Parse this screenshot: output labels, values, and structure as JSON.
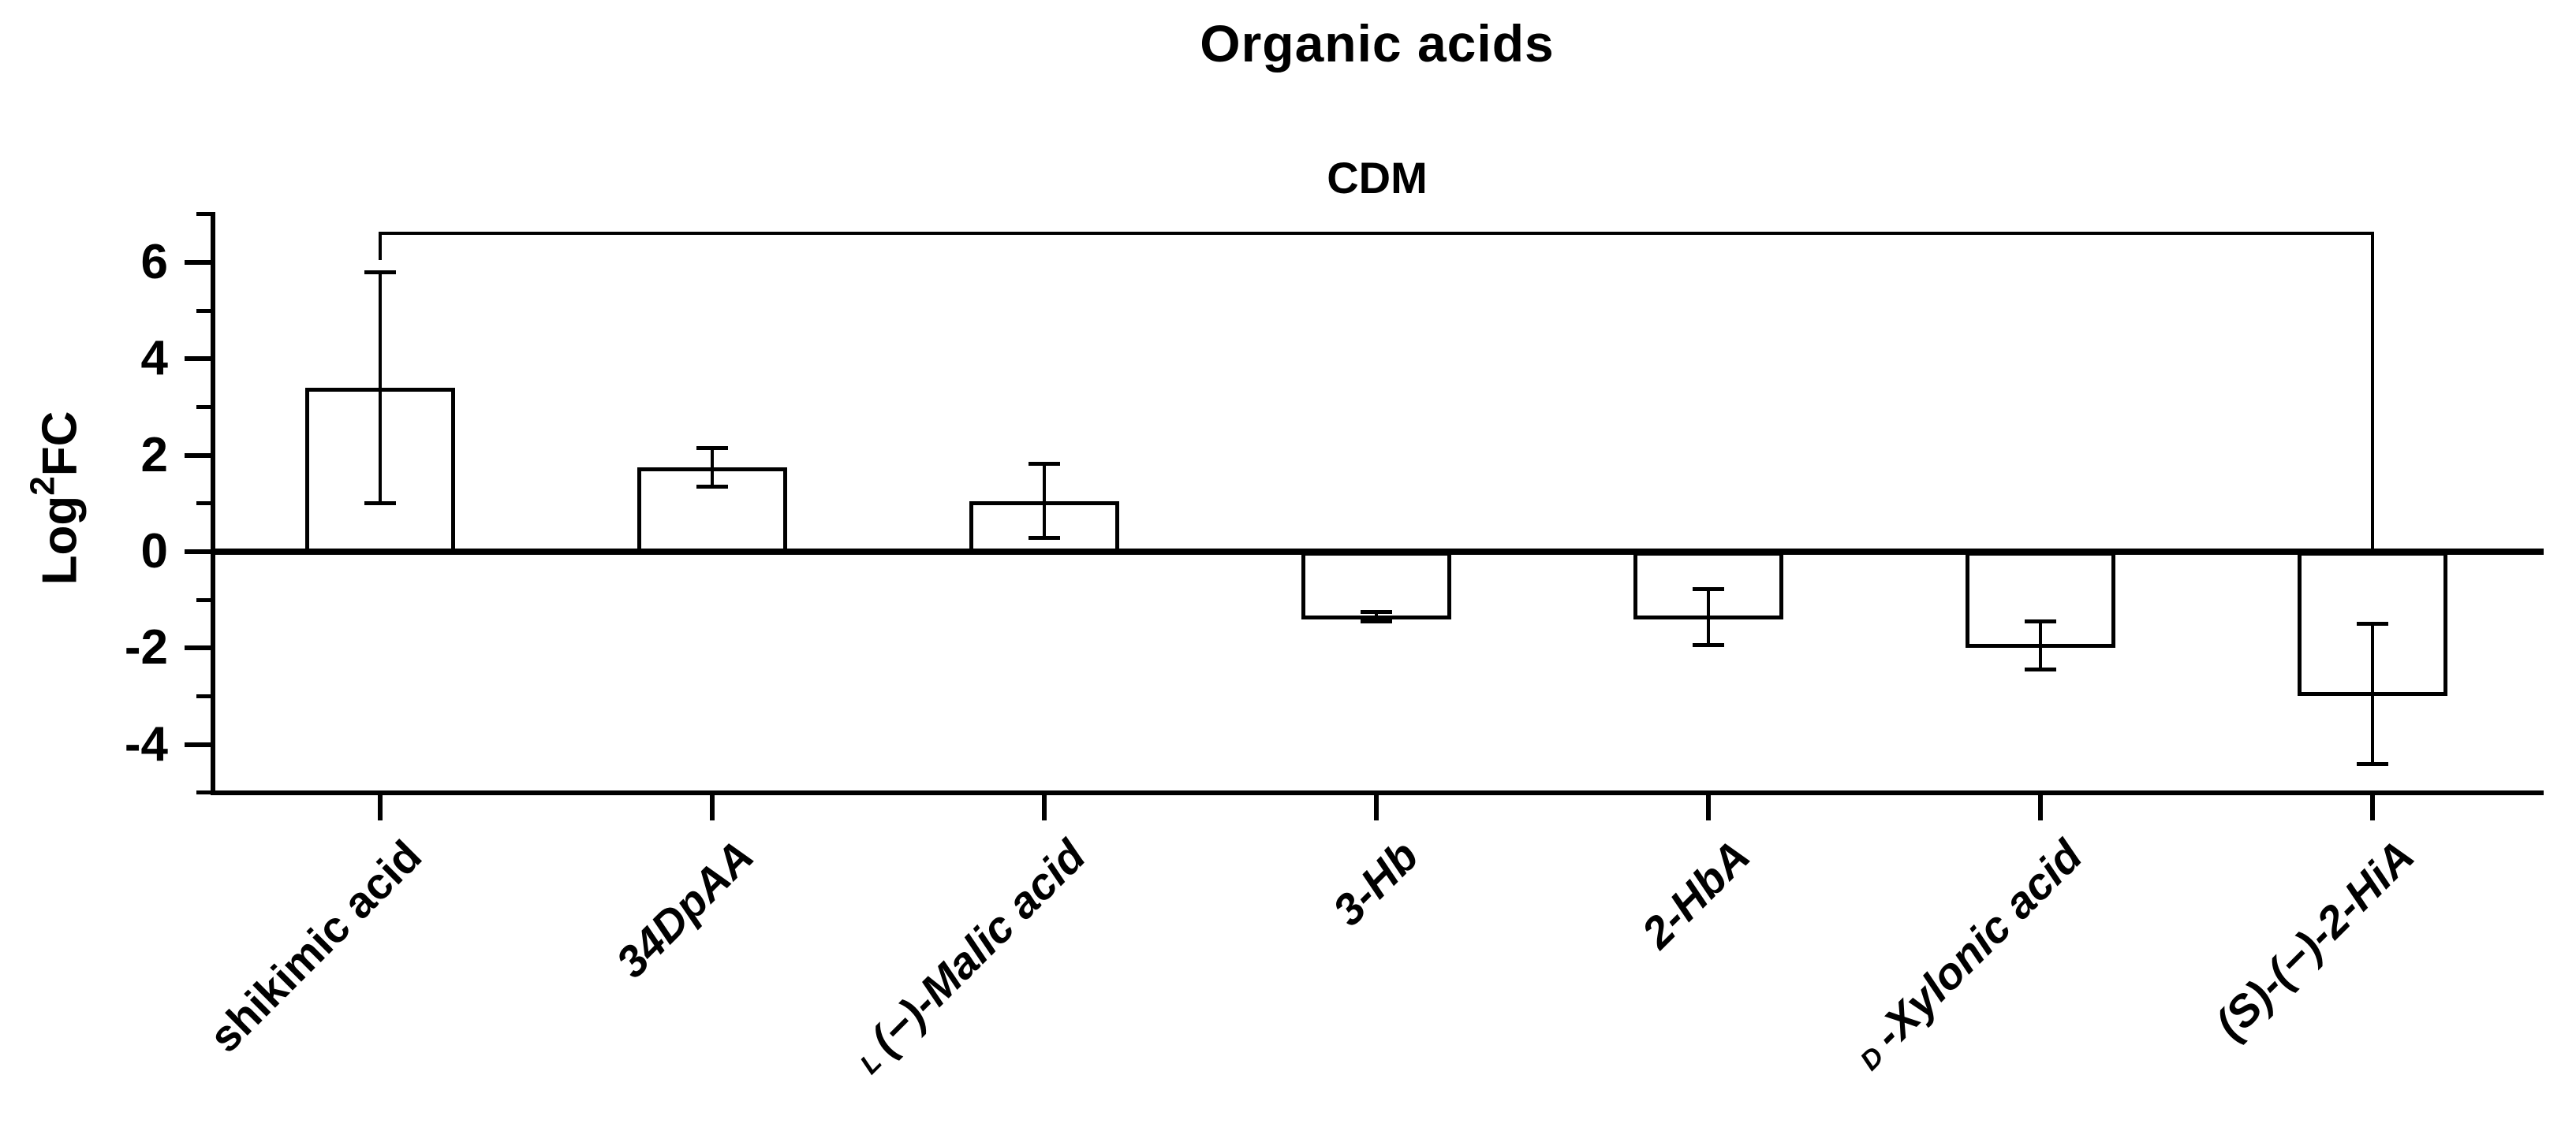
{
  "title": "Organic acids",
  "subtitle_bracket_label": "CDM",
  "y_axis": {
    "label_base": "Log",
    "label_sup": "2",
    "label_rest": "FC"
  },
  "chart_data": {
    "type": "bar",
    "title": "Organic acids",
    "ylabel": "Log2FC",
    "xlabel": "",
    "ylim": [
      -5,
      7
    ],
    "ytick_major": [
      6,
      4,
      2,
      0,
      -2,
      -4
    ],
    "ytick_minor": [
      7,
      5,
      3,
      1,
      -1,
      -3,
      -5
    ],
    "grid": false,
    "legend": false,
    "bar_fill": "#ffffff",
    "line_color": "#000000",
    "categories": [
      {
        "prefix": "",
        "label": "shikimic acid",
        "italic": false
      },
      {
        "prefix": "",
        "label": "34DpAA",
        "italic": true
      },
      {
        "prefix": "L",
        "label": "(−)-Malic acid",
        "italic": true
      },
      {
        "prefix": "",
        "label": "3-Hb",
        "italic": true
      },
      {
        "prefix": "",
        "label": "2-HbA",
        "italic": true
      },
      {
        "prefix": "D",
        "label": "-Xylonic acid",
        "italic": true
      },
      {
        "prefix": "",
        "label": "(S)-(−)-2-HiA",
        "italic": true
      }
    ],
    "series": [
      {
        "name": "CDM",
        "values": [
          3.4,
          1.75,
          1.05,
          -1.35,
          -1.35,
          -1.95,
          -2.95
        ],
        "errors": [
          2.4,
          0.4,
          0.77,
          0.1,
          0.58,
          0.5,
          1.45
        ]
      }
    ],
    "bracket": {
      "label": "CDM",
      "from_index": 0,
      "to_index": 6,
      "y_value": 6.6,
      "left_tick_to": 6.05,
      "right_drop_to": 0
    }
  }
}
